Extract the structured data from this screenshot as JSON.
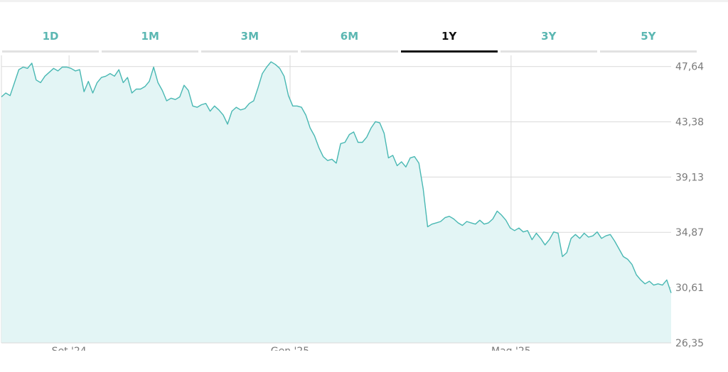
{
  "tabs": [
    {
      "label": "1D",
      "active": false
    },
    {
      "label": "1M",
      "active": false
    },
    {
      "label": "3M",
      "active": false
    },
    {
      "label": "6M",
      "active": false
    },
    {
      "label": "1Y",
      "active": true
    },
    {
      "label": "3Y",
      "active": false
    },
    {
      "label": "5Y",
      "active": false
    }
  ],
  "colors": {
    "line": "#49b8b3",
    "fill": "#e3f5f5",
    "grid": "#d9d9d9",
    "tab_inactive": "#5bb7b2",
    "tab_active": "#111111"
  },
  "chart_data": {
    "type": "area",
    "title": "",
    "xlabel": "",
    "ylabel": "",
    "ylim": [
      26.35,
      48.5
    ],
    "y_ticks": [
      "47,64",
      "43,38",
      "39,13",
      "34,87",
      "30,61",
      "26,35"
    ],
    "y_tick_values": [
      47.64,
      43.38,
      39.13,
      34.87,
      30.61,
      26.35
    ],
    "x_ticks": [
      "Set '24",
      "Gen '25",
      "Mag '25"
    ],
    "x_tick_positions": [
      0.101,
      0.431,
      0.761
    ],
    "grid": true,
    "legend": "none",
    "series": [
      {
        "values": [
          45.3,
          45.6,
          45.4,
          46.4,
          47.4,
          47.6,
          47.5,
          47.9,
          46.6,
          46.4,
          46.9,
          47.2,
          47.5,
          47.3,
          47.6,
          47.6,
          47.5,
          47.3,
          47.4,
          45.7,
          46.5,
          45.6,
          46.4,
          46.8,
          46.9,
          47.1,
          46.9,
          47.4,
          46.4,
          46.8,
          45.6,
          45.9,
          45.9,
          46.1,
          46.5,
          47.6,
          46.4,
          45.8,
          45.0,
          45.2,
          45.1,
          45.3,
          46.2,
          45.8,
          44.6,
          44.5,
          44.7,
          44.8,
          44.2,
          44.6,
          44.3,
          43.9,
          43.2,
          44.2,
          44.5,
          44.3,
          44.4,
          44.8,
          45.0,
          46.0,
          47.1,
          47.6,
          48.0,
          47.8,
          47.5,
          46.9,
          45.4,
          44.6,
          44.6,
          44.5,
          43.9,
          42.9,
          42.3,
          41.4,
          40.7,
          40.4,
          40.5,
          40.2,
          41.7,
          41.8,
          42.4,
          42.6,
          41.8,
          41.8,
          42.2,
          42.9,
          43.4,
          43.3,
          42.5,
          40.6,
          40.8,
          40.0,
          40.3,
          39.9,
          40.6,
          40.7,
          40.2,
          38.2,
          35.3,
          35.5,
          35.6,
          35.7,
          36.0,
          36.1,
          35.9,
          35.6,
          35.4,
          35.7,
          35.6,
          35.5,
          35.8,
          35.5,
          35.6,
          35.9,
          36.5,
          36.2,
          35.8,
          35.2,
          35.0,
          35.2,
          34.9,
          35.0,
          34.3,
          34.8,
          34.4,
          33.9,
          34.3,
          34.9,
          34.8,
          33.0,
          33.3,
          34.4,
          34.7,
          34.4,
          34.8,
          34.5,
          34.6,
          34.9,
          34.4,
          34.6,
          34.7,
          34.2,
          33.6,
          33.0,
          32.8,
          32.4,
          31.6,
          31.2,
          30.9,
          31.1,
          30.8,
          30.9,
          30.8,
          31.2,
          30.2
        ]
      }
    ]
  }
}
